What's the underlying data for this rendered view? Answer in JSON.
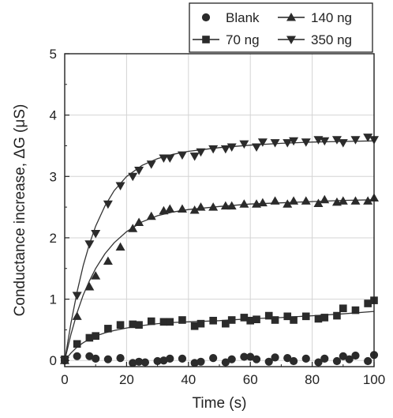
{
  "chart_data": {
    "type": "scatter",
    "xlabel": "Time (s)",
    "ylabel": "Conductance increase, ΔG (μS)",
    "xlim": [
      0,
      100
    ],
    "ylim": [
      -0.1,
      5
    ],
    "xticks": [
      0,
      20,
      40,
      60,
      80,
      100
    ],
    "yticks": [
      0,
      1,
      2,
      3,
      4,
      5
    ],
    "grid": true,
    "legend_position": "top",
    "series": [
      {
        "name": "Blank",
        "marker": "circle",
        "color": "#2b2b2b",
        "x": [
          0,
          4,
          8,
          10,
          14,
          18,
          22,
          24,
          26,
          30,
          32,
          34,
          38,
          42,
          44,
          48,
          52,
          54,
          58,
          60,
          62,
          66,
          68,
          72,
          74,
          78,
          82,
          84,
          88,
          90,
          92,
          94,
          98,
          100
        ],
        "y": [
          0.0,
          0.07,
          0.07,
          0.03,
          0.02,
          0.04,
          -0.04,
          -0.02,
          -0.03,
          -0.01,
          0.0,
          0.03,
          0.03,
          -0.04,
          -0.02,
          0.04,
          -0.03,
          0.02,
          0.06,
          0.06,
          0.02,
          -0.02,
          0.05,
          0.04,
          -0.01,
          0.03,
          -0.03,
          0.03,
          -0.01,
          0.07,
          0.02,
          0.08,
          -0.01,
          0.09
        ]
      },
      {
        "name": "70 ng",
        "marker": "square",
        "color": "#2b2b2b",
        "x": [
          0,
          4,
          8,
          10,
          14,
          18,
          22,
          24,
          28,
          32,
          34,
          38,
          42,
          44,
          48,
          52,
          54,
          58,
          60,
          62,
          66,
          68,
          72,
          74,
          78,
          82,
          84,
          88,
          90,
          94,
          98,
          100
        ],
        "y": [
          0.02,
          0.27,
          0.37,
          0.4,
          0.52,
          0.58,
          0.59,
          0.58,
          0.64,
          0.63,
          0.63,
          0.66,
          0.56,
          0.6,
          0.65,
          0.6,
          0.66,
          0.7,
          0.65,
          0.67,
          0.73,
          0.66,
          0.72,
          0.66,
          0.72,
          0.68,
          0.7,
          0.73,
          0.85,
          0.82,
          0.93,
          0.98
        ]
      },
      {
        "name": "140 ng",
        "marker": "triangle-up",
        "color": "#2b2b2b",
        "x": [
          0,
          4,
          8,
          10,
          14,
          18,
          22,
          24,
          28,
          32,
          34,
          38,
          42,
          44,
          48,
          52,
          54,
          58,
          62,
          64,
          68,
          72,
          74,
          78,
          82,
          84,
          88,
          90,
          94,
          98,
          100
        ],
        "y": [
          0.0,
          0.72,
          1.2,
          1.38,
          1.62,
          1.85,
          2.15,
          2.25,
          2.35,
          2.44,
          2.47,
          2.47,
          2.45,
          2.5,
          2.5,
          2.52,
          2.52,
          2.55,
          2.55,
          2.57,
          2.6,
          2.55,
          2.6,
          2.6,
          2.56,
          2.62,
          2.58,
          2.6,
          2.6,
          2.6,
          2.65
        ]
      },
      {
        "name": "350 ng",
        "marker": "triangle-down",
        "color": "#2b2b2b",
        "x": [
          0,
          4,
          8,
          10,
          14,
          18,
          22,
          24,
          28,
          32,
          34,
          38,
          42,
          44,
          48,
          52,
          54,
          58,
          62,
          64,
          68,
          72,
          74,
          78,
          82,
          84,
          88,
          90,
          94,
          98,
          100
        ],
        "y": [
          0.0,
          1.06,
          1.9,
          2.07,
          2.55,
          2.85,
          3.0,
          3.1,
          3.2,
          3.3,
          3.3,
          3.35,
          3.33,
          3.4,
          3.45,
          3.45,
          3.48,
          3.53,
          3.48,
          3.56,
          3.55,
          3.55,
          3.58,
          3.56,
          3.6,
          3.58,
          3.6,
          3.55,
          3.6,
          3.64,
          3.6
        ]
      }
    ],
    "fit_curves": [
      {
        "x": [
          0,
          2,
          4,
          6,
          8,
          10,
          13,
          16,
          20,
          25,
          30,
          35,
          40,
          50,
          60,
          70,
          80,
          90,
          100
        ],
        "y": [
          0.0,
          0.12,
          0.22,
          0.29,
          0.35,
          0.4,
          0.45,
          0.49,
          0.53,
          0.57,
          0.6,
          0.62,
          0.63,
          0.65,
          0.68,
          0.7,
          0.73,
          0.76,
          0.8
        ]
      },
      {
        "x": [
          0,
          2,
          4,
          6,
          8,
          10,
          13,
          16,
          20,
          25,
          30,
          35,
          40,
          50,
          60,
          70,
          80,
          90,
          100
        ],
        "y": [
          0.0,
          0.42,
          0.78,
          1.07,
          1.3,
          1.5,
          1.74,
          1.92,
          2.1,
          2.26,
          2.36,
          2.42,
          2.46,
          2.51,
          2.55,
          2.57,
          2.59,
          2.61,
          2.62
        ]
      },
      {
        "x": [
          0,
          2,
          4,
          6,
          8,
          10,
          13,
          16,
          20,
          25,
          30,
          35,
          40,
          50,
          60,
          70,
          80,
          90,
          100
        ],
        "y": [
          0.0,
          0.6,
          1.12,
          1.55,
          1.9,
          2.19,
          2.52,
          2.77,
          3.0,
          3.18,
          3.29,
          3.36,
          3.41,
          3.47,
          3.51,
          3.54,
          3.56,
          3.57,
          3.58
        ]
      }
    ]
  }
}
